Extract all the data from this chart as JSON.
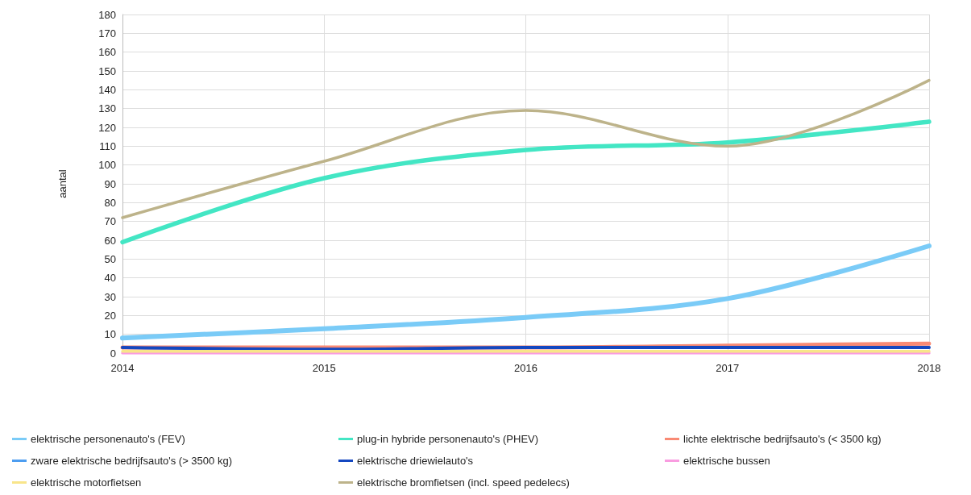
{
  "chart_data": {
    "type": "line",
    "ylabel": "aantal",
    "x": [
      2014,
      2015,
      2016,
      2017,
      2018
    ],
    "xlim": [
      2014,
      2018
    ],
    "xticks": [
      2014,
      2015,
      2016,
      2017,
      2018
    ],
    "ylim": [
      0,
      180
    ],
    "yticks": [
      0,
      10,
      20,
      30,
      40,
      50,
      60,
      70,
      80,
      90,
      100,
      110,
      120,
      130,
      140,
      150,
      160,
      170,
      180
    ],
    "grid": true,
    "legend": "bottom",
    "marker": "none",
    "line_style": "solid",
    "series": [
      {
        "name": "elektrische personenauto's (FEV)",
        "color": "#7acbf7",
        "values": [
          8,
          13,
          19,
          29,
          57
        ]
      },
      {
        "name": "plug-in hybride personenauto's (PHEV)",
        "color": "#43e6c4",
        "values": [
          59,
          93,
          108,
          112,
          123
        ]
      },
      {
        "name": "lichte elektrische bedrijfsauto's (< 3500 kg)",
        "color": "#f98a74",
        "values": [
          3,
          3,
          3,
          4,
          5
        ]
      },
      {
        "name": "zware elektrische bedrijfsauto's (> 3500 kg)",
        "color": "#4d9df0",
        "values": [
          null,
          null,
          null,
          null,
          null
        ]
      },
      {
        "name": "elektrische driewielauto's",
        "color": "#1447c0",
        "values": [
          3,
          2,
          3,
          3,
          3
        ]
      },
      {
        "name": "elektrische bussen",
        "color": "#f99ce0",
        "values": [
          0,
          0,
          0,
          0,
          0
        ]
      },
      {
        "name": "elektrische motorfietsen",
        "color": "#f8e58a",
        "values": [
          1,
          1,
          1,
          1,
          1
        ]
      },
      {
        "name": "elektrische bromfietsen (incl. speed pedelecs)",
        "color": "#bdb38a",
        "values": [
          72,
          102,
          129,
          110,
          145
        ]
      }
    ]
  }
}
